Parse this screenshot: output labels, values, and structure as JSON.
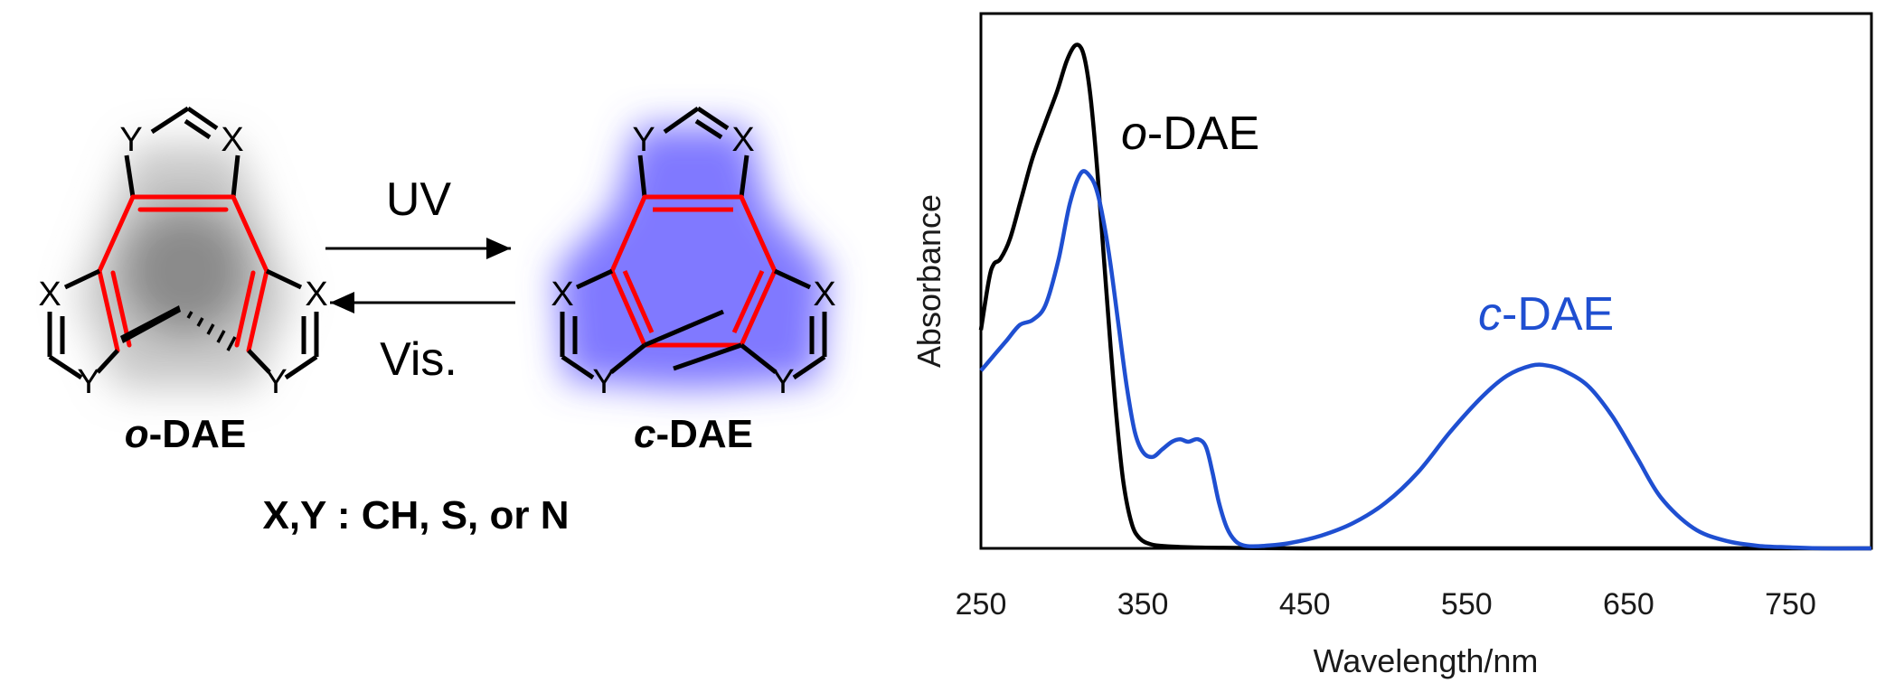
{
  "scheme": {
    "open_isomer_label": {
      "prefix": "o",
      "suffix": "-DAE"
    },
    "closed_isomer_label": {
      "prefix": "c",
      "suffix": "-DAE"
    },
    "forward_arrow_label": "UV",
    "reverse_arrow_label": "Vis.",
    "substituent_note": "X,Y : CH, S, or N",
    "atom_x": "X",
    "atom_y": "Y",
    "colors": {
      "core_bonds": "#ff0000",
      "closed_glow": "#6a62ff",
      "open_shadow": "#888888"
    }
  },
  "chart_data": {
    "type": "line",
    "xlabel": "Wavelength/nm",
    "ylabel": "Absorbance",
    "xlim": [
      250,
      800
    ],
    "ylim": [
      0,
      1
    ],
    "xticks": [
      250,
      350,
      450,
      550,
      650,
      750
    ],
    "grid": false,
    "series": [
      {
        "name": "o-DAE",
        "name_prefix": "o",
        "name_suffix": "-DAE",
        "color": "#000000",
        "x": [
          250,
          255,
          258,
          262,
          268,
          275,
          282,
          290,
          297,
          303,
          308,
          312,
          315,
          318,
          322,
          326,
          330,
          334,
          338,
          343,
          348,
          355,
          365,
          380,
          400,
          450,
          550,
          650,
          800
        ],
        "y": [
          0.43,
          0.53,
          0.56,
          0.57,
          0.61,
          0.69,
          0.77,
          0.84,
          0.9,
          0.96,
          0.99,
          0.985,
          0.95,
          0.88,
          0.74,
          0.57,
          0.4,
          0.25,
          0.13,
          0.05,
          0.02,
          0.008,
          0.004,
          0.002,
          0.001,
          0.0,
          0.0,
          0.0,
          0.0
        ]
      },
      {
        "name": "c-DAE",
        "name_prefix": "c",
        "name_suffix": "-DAE",
        "color": "#1f4fd1",
        "x": [
          250,
          258,
          266,
          274,
          282,
          290,
          298,
          305,
          312,
          318,
          322,
          326,
          330,
          335,
          340,
          345,
          350,
          356,
          362,
          368,
          373,
          378,
          384,
          389,
          393,
          397,
          402,
          407,
          412,
          418,
          425,
          440,
          460,
          480,
          500,
          520,
          540,
          560,
          575,
          590,
          600,
          610,
          625,
          640,
          655,
          670,
          690,
          710,
          730,
          750,
          770,
          800
        ],
        "y": [
          0.35,
          0.38,
          0.41,
          0.44,
          0.45,
          0.48,
          0.57,
          0.68,
          0.74,
          0.73,
          0.7,
          0.64,
          0.56,
          0.44,
          0.32,
          0.23,
          0.19,
          0.18,
          0.195,
          0.21,
          0.215,
          0.21,
          0.215,
          0.2,
          0.15,
          0.09,
          0.04,
          0.015,
          0.006,
          0.004,
          0.005,
          0.01,
          0.025,
          0.05,
          0.09,
          0.15,
          0.23,
          0.3,
          0.34,
          0.36,
          0.36,
          0.35,
          0.32,
          0.26,
          0.18,
          0.1,
          0.04,
          0.015,
          0.005,
          0.002,
          0.0,
          0.0
        ]
      }
    ]
  }
}
